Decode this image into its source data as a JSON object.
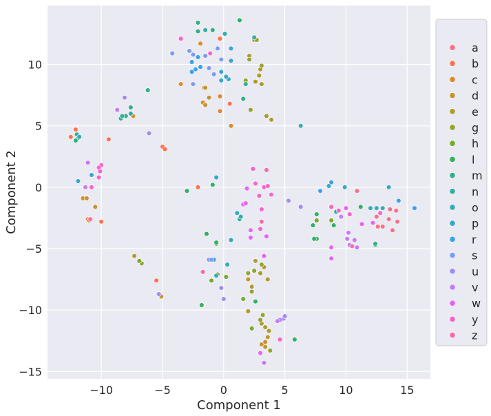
{
  "chart_data": {
    "type": "scatter",
    "xlabel": "Component 1",
    "ylabel": "Component 2",
    "xlim": [
      -14.4,
      16.9
    ],
    "ylim": [
      -15.6,
      14.8
    ],
    "xticks": [
      -10,
      -5,
      0,
      5,
      10,
      15
    ],
    "yticks": [
      -15,
      -10,
      -5,
      0,
      5,
      10
    ],
    "xtick_labels": [
      "−10",
      "−5",
      "0",
      "5",
      "10",
      "15"
    ],
    "ytick_labels": [
      "−15",
      "−10",
      "−5",
      "0",
      "5",
      "10"
    ],
    "grid": true,
    "background": "#eaeaf2",
    "legend_position": "right",
    "series": [
      {
        "name": "a",
        "color": "#f77189",
        "points": [
          [
            10.9,
            -0.3
          ],
          [
            12.5,
            -2.4
          ],
          [
            12.6,
            -3.2
          ],
          [
            13.0,
            -3.2
          ],
          [
            13.5,
            -2.6
          ],
          [
            13.8,
            -3.5
          ],
          [
            14.1,
            -1.9
          ],
          [
            14.2,
            -2.8
          ],
          [
            13.6,
            -1.8
          ]
        ]
      },
      {
        "name": "b",
        "color": "#f7754f",
        "points": [
          [
            -12.1,
            4.7
          ],
          [
            -12.5,
            4.1
          ],
          [
            -5.0,
            3.3
          ],
          [
            -4.8,
            3.1
          ],
          [
            -9.4,
            3.9
          ],
          [
            -2.1,
            0.0
          ],
          [
            -5.5,
            -7.6
          ],
          [
            -10.0,
            -2.8
          ],
          [
            0.5,
            6.8
          ],
          [
            -0.3,
            12.1
          ]
        ]
      },
      {
        "name": "c",
        "color": "#dd8a30",
        "points": [
          [
            -11.5,
            -0.9
          ],
          [
            -11.1,
            -2.6
          ],
          [
            -11.0,
            -2.7
          ],
          [
            -1.9,
            11.7
          ],
          [
            0.6,
            5.0
          ],
          [
            -7.4,
            5.8
          ],
          [
            -0.3,
            7.4
          ],
          [
            -0.3,
            6.2
          ],
          [
            -1.7,
            6.9
          ],
          [
            -3.5,
            8.4
          ]
        ]
      },
      {
        "name": "d",
        "color": "#c39532",
        "points": [
          [
            -11.2,
            -0.9
          ],
          [
            -10.5,
            -1.6
          ],
          [
            -5.1,
            -8.9
          ],
          [
            -1.5,
            6.7
          ],
          [
            -1.2,
            7.3
          ],
          [
            -1.6,
            8.1
          ],
          [
            -1.5,
            8.1
          ],
          [
            2.0,
            -7.5
          ],
          [
            3.1,
            -12.8
          ],
          [
            3.4,
            -12.6
          ],
          [
            3.6,
            -12.2
          ],
          [
            3.4,
            -13.0
          ]
        ]
      },
      {
        "name": "e",
        "color": "#ad9c31",
        "points": [
          [
            -7.3,
            -5.6
          ],
          [
            2.6,
            -6.0
          ],
          [
            3.3,
            -6.5
          ],
          [
            3.0,
            -7.0
          ],
          [
            2.3,
            -8.1
          ],
          [
            3.6,
            -7.5
          ],
          [
            2.0,
            -10.1
          ],
          [
            3.1,
            -11.1
          ],
          [
            3.4,
            -11.4
          ],
          [
            3.7,
            -11.7
          ],
          [
            2.5,
            12.0
          ],
          [
            2.1,
            10.7
          ],
          [
            3.0,
            9.6
          ],
          [
            2.9,
            9.1
          ],
          [
            2.6,
            8.6
          ],
          [
            3.1,
            8.4
          ],
          [
            3.5,
            5.8
          ],
          [
            3.9,
            5.5
          ]
        ]
      },
      {
        "name": "g",
        "color": "#96a331",
        "points": [
          [
            -6.7,
            -6.2
          ],
          [
            2.0,
            -7.0
          ],
          [
            2.5,
            -6.8
          ],
          [
            3.1,
            -6.3
          ],
          [
            2.3,
            -8.5
          ],
          [
            3.2,
            -10.4
          ],
          [
            3.0,
            -10.8
          ],
          [
            3.8,
            -13.3
          ],
          [
            2.7,
            12.0
          ],
          [
            2.1,
            10.4
          ],
          [
            3.1,
            9.9
          ],
          [
            1.8,
            8.7
          ],
          [
            2.2,
            6.3
          ]
        ]
      },
      {
        "name": "h",
        "color": "#75ab31",
        "points": [
          [
            -6.9,
            -6.0
          ],
          [
            -1.0,
            -7.6
          ],
          [
            0.2,
            -7.3
          ],
          [
            -0.5,
            -7.1
          ],
          [
            -0.6,
            -4.6
          ],
          [
            1.6,
            -9.1
          ],
          [
            2.3,
            -11.5
          ],
          [
            8.8,
            -2.7
          ],
          [
            7.6,
            -2.7
          ]
        ]
      },
      {
        "name": "l",
        "color": "#32b166",
        "points": [
          [
            -3.0,
            -0.3
          ],
          [
            -1.4,
            -3.8
          ],
          [
            -1.8,
            -9.6
          ],
          [
            -0.6,
            -4.5
          ],
          [
            -0.9,
            0.2
          ],
          [
            2.6,
            -9.3
          ],
          [
            7.6,
            -4.2
          ],
          [
            7.4,
            -4.2
          ],
          [
            7.3,
            -3.1
          ],
          [
            7.6,
            -2.2
          ],
          [
            9.0,
            -3.1
          ],
          [
            11.2,
            -1.6
          ],
          [
            12.4,
            -4.7
          ],
          [
            5.8,
            -12.4
          ],
          [
            1.3,
            13.6
          ]
        ]
      },
      {
        "name": "m",
        "color": "#34ae8b",
        "points": [
          [
            -7.6,
            6.5
          ],
          [
            -8.4,
            5.6
          ],
          [
            -8.0,
            5.8
          ],
          [
            -11.9,
            4.0
          ],
          [
            -12.1,
            3.8
          ],
          [
            -6.2,
            7.9
          ],
          [
            -0.9,
            12.8
          ],
          [
            -2.1,
            12.7
          ],
          [
            -2.1,
            13.4
          ],
          [
            1.8,
            8.4
          ],
          [
            1.6,
            7.2
          ],
          [
            9.2,
            -2.0
          ],
          [
            12.4,
            -4.6
          ]
        ]
      },
      {
        "name": "n",
        "color": "#36ada4",
        "points": [
          [
            -12.0,
            4.3
          ],
          [
            -11.8,
            4.1
          ],
          [
            -7.6,
            6.0
          ],
          [
            -8.3,
            5.8
          ],
          [
            -1.5,
            12.8
          ],
          [
            0.1,
            12.5
          ],
          [
            2.5,
            12.2
          ],
          [
            1.3,
            -2.6
          ],
          [
            1.4,
            -2.4
          ]
        ]
      },
      {
        "name": "o",
        "color": "#38aaba",
        "points": [
          [
            -0.6,
            -7.2
          ],
          [
            0.6,
            -4.3
          ],
          [
            0.3,
            -6.3
          ],
          [
            -0.8,
            -5.9
          ],
          [
            1.1,
            -2.1
          ],
          [
            12.0,
            -1.7
          ],
          [
            12.5,
            -1.7
          ],
          [
            13.0,
            -1.7
          ],
          [
            6.3,
            5.0
          ]
        ]
      },
      {
        "name": "p",
        "color": "#3aa6cf",
        "points": [
          [
            8.6,
            0.1
          ],
          [
            8.8,
            0.4
          ],
          [
            9.9,
            0.0
          ],
          [
            13.5,
            0.0
          ],
          [
            -11.9,
            0.5
          ],
          [
            -10.8,
            1.0
          ],
          [
            -0.6,
            0.8
          ],
          [
            0.6,
            11.3
          ],
          [
            0.4,
            8.8
          ],
          [
            0.2,
            9.0
          ],
          [
            -0.2,
            9.4
          ],
          [
            -0.2,
            8.7
          ],
          [
            0.6,
            10.3
          ]
        ]
      },
      {
        "name": "r",
        "color": "#3ba2ea",
        "points": [
          [
            7.9,
            -0.3
          ],
          [
            14.3,
            -1.1
          ],
          [
            15.6,
            -1.7
          ],
          [
            -2.6,
            10.2
          ],
          [
            -2.3,
            9.6
          ],
          [
            -1.9,
            9.8
          ],
          [
            -2.1,
            10.6
          ],
          [
            -2.6,
            9.4
          ]
        ]
      },
      {
        "name": "s",
        "color": "#7d9bf6",
        "points": [
          [
            -4.2,
            10.9
          ],
          [
            -2.8,
            11.1
          ],
          [
            -2.5,
            10.8
          ],
          [
            -2.5,
            8.4
          ],
          [
            -1.2,
            9.7
          ],
          [
            -1.5,
            10.7
          ],
          [
            -0.8,
            9.2
          ],
          [
            -0.5,
            11.3
          ],
          [
            -0.2,
            10.4
          ],
          [
            -1.2,
            -5.9
          ],
          [
            -1.0,
            -5.9
          ]
        ]
      },
      {
        "name": "u",
        "color": "#a48cf4",
        "points": [
          [
            -8.1,
            7.3
          ],
          [
            -6.1,
            4.4
          ],
          [
            -5.3,
            -8.7
          ],
          [
            -0.2,
            -8.2
          ],
          [
            0.0,
            -9.1
          ],
          [
            5.3,
            -1.1
          ],
          [
            6.3,
            -1.6
          ],
          [
            4.7,
            -10.8
          ],
          [
            4.9,
            -10.7
          ],
          [
            5.0,
            -10.5
          ]
        ]
      },
      {
        "name": "v",
        "color": "#c27ef4",
        "points": [
          [
            -11.1,
            2.0
          ],
          [
            -11.3,
            0.0
          ],
          [
            -8.7,
            6.3
          ],
          [
            4.6,
            -10.8
          ],
          [
            4.4,
            -10.9
          ],
          [
            3.3,
            -14.3
          ],
          [
            10.1,
            -4.2
          ],
          [
            10.3,
            -4.7
          ],
          [
            10.2,
            -3.7
          ],
          [
            10.9,
            -4.9
          ],
          [
            9.6,
            -2.4
          ],
          [
            10.7,
            -4.3
          ]
        ]
      },
      {
        "name": "w",
        "color": "#e565f3",
        "points": [
          [
            1.6,
            -1.4
          ],
          [
            1.8,
            -1.3
          ],
          [
            2.2,
            -3.5
          ],
          [
            2.2,
            -4.1
          ],
          [
            3.5,
            -4.0
          ],
          [
            3.3,
            -5.6
          ],
          [
            3.0,
            -13.5
          ],
          [
            8.8,
            -4.9
          ],
          [
            8.8,
            -5.8
          ],
          [
            10.0,
            -1.7
          ],
          [
            11.3,
            -3.0
          ],
          [
            12.2,
            -2.9
          ],
          [
            1.9,
            -0.1
          ]
        ]
      },
      {
        "name": "y",
        "color": "#f565cc",
        "points": [
          [
            -10.8,
            0.0
          ],
          [
            -10.0,
            1.8
          ],
          [
            -10.1,
            1.3
          ],
          [
            -10.2,
            1.6
          ],
          [
            -10.2,
            0.8
          ],
          [
            -3.5,
            12.1
          ],
          [
            -1.1,
            10.9
          ],
          [
            2.4,
            1.5
          ],
          [
            3.3,
            0.0
          ],
          [
            2.6,
            0.3
          ],
          [
            3.6,
            0.1
          ],
          [
            3.9,
            -0.6
          ],
          [
            2.9,
            -0.7
          ],
          [
            3.1,
            -1.8
          ],
          [
            3.0,
            -3.4
          ],
          [
            4.6,
            -12.4
          ],
          [
            9.4,
            -1.9
          ],
          [
            10.3,
            -2.2
          ],
          [
            12.8,
            -2.1
          ]
        ]
      },
      {
        "name": "z",
        "color": "#f66bad",
        "points": [
          [
            -10.9,
            -2.6
          ],
          [
            -1.7,
            -6.9
          ],
          [
            3.5,
            1.4
          ],
          [
            3.1,
            -2.8
          ],
          [
            8.8,
            -1.6
          ],
          [
            10.5,
            -4.8
          ]
        ]
      }
    ]
  }
}
